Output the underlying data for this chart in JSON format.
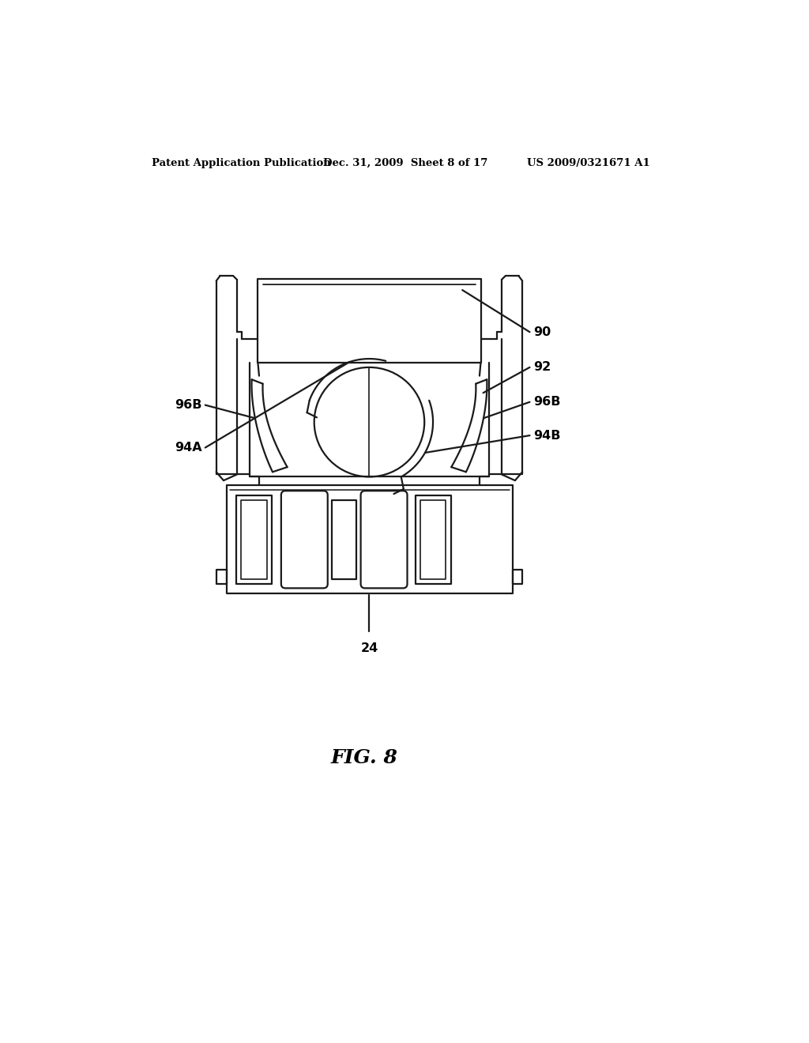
{
  "bg_color": "#ffffff",
  "header_left": "Patent Application Publication",
  "header_mid": "Dec. 31, 2009  Sheet 8 of 17",
  "header_right": "US 2009/0321671 A1",
  "fig_label": "FIG. 8",
  "line_color": "#1a1a1a",
  "line_width": 1.6,
  "label_fontsize": 11.5,
  "header_fontsize": 9.5,
  "fig_fontsize": 18
}
